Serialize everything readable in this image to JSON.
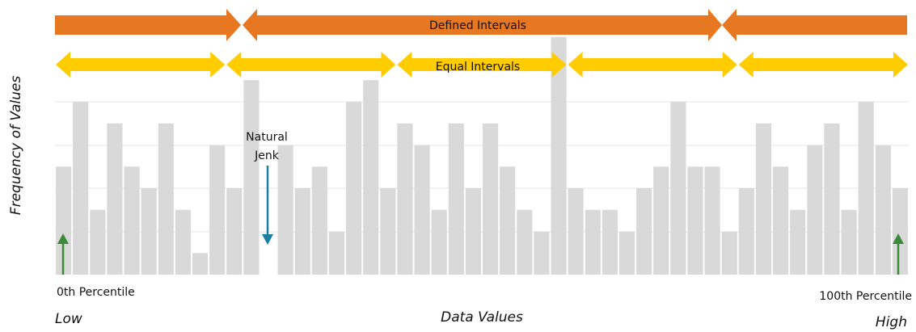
{
  "chart_data": {
    "type": "bar",
    "values": [
      5,
      8,
      3,
      7,
      5,
      4,
      7,
      3,
      1,
      6,
      4,
      9,
      0,
      6,
      4,
      5,
      2,
      8,
      9,
      4,
      7,
      6,
      3,
      7,
      4,
      7,
      5,
      3,
      2,
      11,
      4,
      3,
      3,
      2,
      4,
      5,
      8,
      5,
      5,
      2,
      4,
      7,
      5,
      3,
      6,
      7,
      3,
      8,
      6,
      4
    ],
    "color": "#d9d9d9",
    "ylim": [
      0,
      12
    ],
    "x_label": "Data Values",
    "y_label": "Frequency of Values",
    "annotations": {
      "defined_intervals": "Defined Intervals",
      "equal_intervals": "Equal Intervals",
      "natural_jenk": [
        "Natural",
        "Jenk"
      ],
      "low_percentile": "0th Percentile",
      "high_percentile": "100th Percentile",
      "low": "Low",
      "high": "High"
    }
  }
}
